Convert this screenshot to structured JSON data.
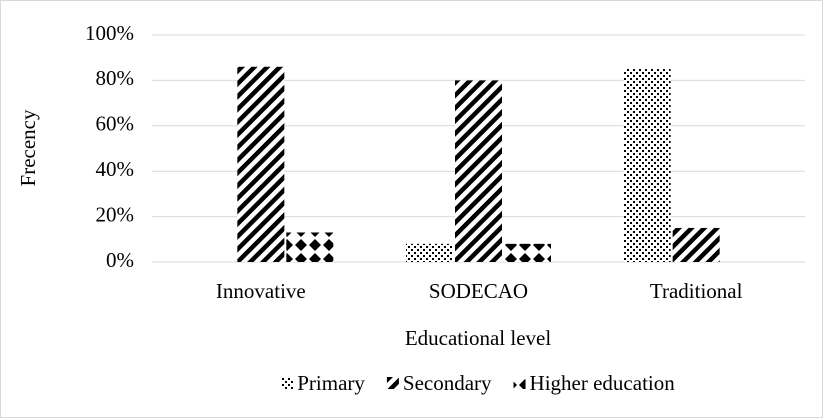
{
  "chart_data": {
    "type": "bar",
    "x_label": "Educational level",
    "y_label": "Frecency",
    "categories": [
      "Innovative",
      "SODECAO",
      "Traditional"
    ],
    "series": [
      {
        "name": "Primary",
        "color": "#000000",
        "values": [
          0,
          8,
          85
        ]
      },
      {
        "name": "Secondary",
        "color": "#000000",
        "values": [
          86,
          80,
          15
        ]
      },
      {
        "name": "Higher education",
        "color": "#000000",
        "values": [
          13,
          8,
          0
        ]
      }
    ],
    "ylim": [
      0,
      100
    ],
    "yticks": [
      {
        "value": 0,
        "label": "0%"
      },
      {
        "value": 20,
        "label": "20%"
      },
      {
        "value": 40,
        "label": "40%"
      },
      {
        "value": 60,
        "label": "60%"
      },
      {
        "value": 80,
        "label": "80%"
      },
      {
        "value": 100,
        "label": "100%"
      }
    ],
    "grid": true,
    "legend": "bottom"
  }
}
